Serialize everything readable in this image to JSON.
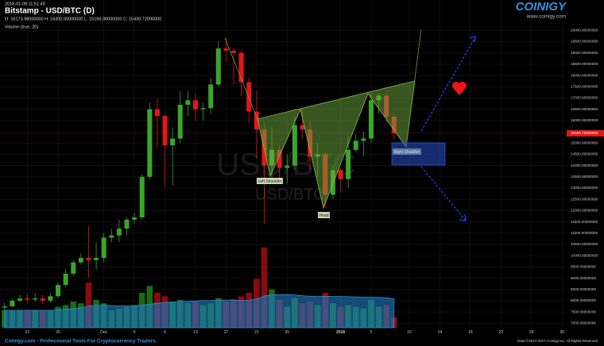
{
  "chart_data": {
    "type": "candlestick",
    "timestamp": "2018-01-08 11:51:49",
    "title": "Bitstamp - USD/BTC (D)",
    "ohlc_text": "O: 16173.98000000 H: 16300.00000000 L: 15156.00000000 C: 15430.72000000",
    "volume_label": "Volume (true, 20)",
    "watermark": "USD/BTC",
    "brand": "COINIGY",
    "brand_url": "www.coinigy.com",
    "footer": "Coinigy.com - Professional Tools For Cryptocurrency Traders.",
    "copyright": "Data ©2014-2017 Coinigy Inc. All Rights Reserved",
    "annotations": [
      "Left Shoulder",
      "Head",
      "Right Shoulder"
    ],
    "last_price_label": "15430.72000000",
    "up_color": "#3aa52a",
    "down_color": "#e3161a",
    "grid": true,
    "x": [
      0,
      1,
      2,
      3,
      4,
      5,
      6,
      7,
      8,
      9,
      10,
      11,
      12,
      13,
      14,
      15,
      16,
      17,
      18,
      19,
      20,
      21,
      22,
      23,
      24,
      25,
      26,
      27,
      28,
      29,
      30,
      31,
      32,
      33,
      34,
      35,
      36,
      37,
      38,
      39,
      40,
      41,
      42,
      43,
      44,
      45,
      46,
      47,
      48,
      49,
      50,
      51
    ],
    "open": [
      7700,
      7750,
      8000,
      8100,
      8050,
      8100,
      8000,
      8200,
      8700,
      9200,
      9700,
      9900,
      9800,
      9900,
      10800,
      10900,
      11200,
      11600,
      11700,
      13500,
      16500,
      16200,
      14900,
      15200,
      16700,
      16900,
      16500,
      16550,
      17600,
      19200,
      19100,
      19000,
      17700,
      16400,
      15600,
      14000,
      14700,
      13900,
      14000,
      15800,
      15600,
      14400,
      14500,
      12700,
      13800,
      13400,
      14700,
      15100,
      15200,
      16900,
      17100,
      16173.98
    ],
    "high": [
      7900,
      8100,
      8250,
      8300,
      8350,
      8250,
      8350,
      8800,
      9400,
      9800,
      10100,
      11300,
      10600,
      11000,
      11200,
      11600,
      11700,
      11900,
      13600,
      16800,
      17000,
      16300,
      15700,
      17300,
      17300,
      17200,
      16800,
      17900,
      19500,
      19700,
      19200,
      19100,
      17900,
      17300,
      15900,
      15700,
      14900,
      14500,
      16200,
      16500,
      16000,
      15000,
      14600,
      14000,
      13900,
      15300,
      15400,
      15500,
      17200,
      17200,
      17200,
      16300
    ],
    "low": [
      7600,
      7700,
      7950,
      7900,
      7950,
      7850,
      7900,
      8100,
      8600,
      9100,
      9600,
      9000,
      9400,
      9700,
      10600,
      10600,
      10900,
      11400,
      11600,
      13400,
      14800,
      13000,
      13100,
      15000,
      16200,
      16000,
      16000,
      16300,
      17500,
      18600,
      17600,
      17100,
      15900,
      14300,
      11400,
      13400,
      13300,
      13200,
      13800,
      15200,
      13800,
      13500,
      12100,
      12500,
      12800,
      13000,
      14600,
      14400,
      15000,
      16300,
      15900,
      15156
    ],
    "close": [
      7750,
      8000,
      8100,
      8050,
      8100,
      8000,
      8200,
      8700,
      9200,
      9700,
      9900,
      9800,
      9900,
      10800,
      10900,
      11200,
      11600,
      11700,
      13500,
      16500,
      16200,
      14900,
      15200,
      16700,
      16900,
      16500,
      16550,
      17600,
      19200,
      19100,
      19000,
      17700,
      16400,
      15600,
      14000,
      14700,
      13900,
      14000,
      15800,
      15600,
      14400,
      14500,
      12700,
      13800,
      13400,
      14700,
      15100,
      15200,
      16900,
      17100,
      16173.98,
      15430.72
    ],
    "volume": [
      10000,
      10000,
      10000,
      10000,
      10000,
      10000,
      10000,
      12000,
      13000,
      15000,
      14000,
      26000,
      16000,
      14000,
      10000,
      11000,
      12000,
      13000,
      20000,
      24000,
      20000,
      18000,
      15000,
      16000,
      14000,
      15000,
      13000,
      14000,
      17000,
      15000,
      16000,
      18000,
      20000,
      28000,
      46000,
      22000,
      16000,
      12000,
      17000,
      14000,
      15000,
      13000,
      20000,
      14000,
      12000,
      13000,
      12000,
      11000,
      16000,
      12000,
      13000,
      6000
    ],
    "volume_ma_period": 20,
    "vlim": [
      0,
      50000
    ],
    "xlim": [
      -0.6,
      73.5
    ],
    "xticks": [
      {
        "value": 3,
        "label": "21"
      },
      {
        "value": 7,
        "label": "25"
      },
      {
        "value": 13,
        "label": "Dec"
      },
      {
        "value": 17,
        "label": "5"
      },
      {
        "value": 21,
        "label": "9"
      },
      {
        "value": 25,
        "label": "13"
      },
      {
        "value": 29,
        "label": "17"
      },
      {
        "value": 33,
        "label": "21"
      },
      {
        "value": 37,
        "label": "25"
      },
      {
        "value": 44,
        "label": "2018"
      },
      {
        "value": 48,
        "label": "5"
      },
      {
        "value": 53,
        "label": "10"
      },
      {
        "value": 57,
        "label": "14"
      },
      {
        "value": 61,
        "label": "18"
      },
      {
        "value": 65,
        "label": "22"
      },
      {
        "value": 69,
        "label": "26"
      },
      {
        "value": 73,
        "label": "30"
      }
    ],
    "ylim": [
      6800,
      21350
    ],
    "yticks": [
      {
        "value": 7000,
        "label": "7000.00000000"
      },
      {
        "value": 7500,
        "label": "7500.00000000"
      },
      {
        "value": 8000,
        "label": "8000.00000000"
      },
      {
        "value": 8500,
        "label": "8500.00000000"
      },
      {
        "value": 9000,
        "label": "9000.00000000"
      },
      {
        "value": 9500,
        "label": "9500.00000000"
      },
      {
        "value": 10000,
        "label": "10000.00000000"
      },
      {
        "value": 10500,
        "label": "10500.00000000"
      },
      {
        "value": 11000,
        "label": "11000.00000000"
      },
      {
        "value": 11500,
        "label": "11500.00000000"
      },
      {
        "value": 12000,
        "label": "12000.00000000"
      },
      {
        "value": 12500,
        "label": "12500.00000000"
      },
      {
        "value": 13000,
        "label": "13000.00000000"
      },
      {
        "value": 13500,
        "label": "13500.00000000"
      },
      {
        "value": 14000,
        "label": "14000.00000000"
      },
      {
        "value": 14500,
        "label": "14500.00000000"
      },
      {
        "value": 15000,
        "label": "15000.00000000"
      },
      {
        "value": 15500,
        "label": "15500.00000000"
      },
      {
        "value": 16000,
        "label": "16000.00000000"
      },
      {
        "value": 16500,
        "label": "16500.00000000"
      },
      {
        "value": 17000,
        "label": "17000.00000000"
      },
      {
        "value": 17500,
        "label": "17500.00000000"
      },
      {
        "value": 18000,
        "label": "18000.00000000"
      },
      {
        "value": 18500,
        "label": "18500.00000000"
      },
      {
        "value": 19000,
        "label": "19000.00000000"
      },
      {
        "value": 19500,
        "label": "19500.00000000"
      },
      {
        "value": 20000,
        "label": "20000.00000000"
      }
    ]
  }
}
